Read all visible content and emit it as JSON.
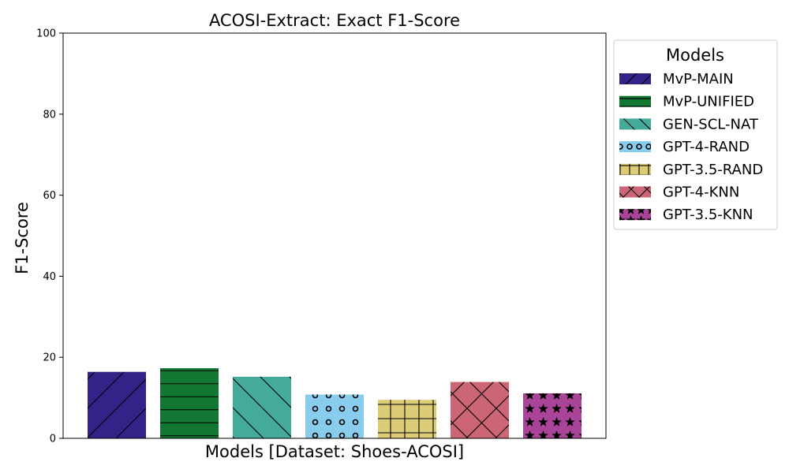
{
  "chart_data": {
    "type": "bar",
    "title": "ACOSI-Extract: Exact F1-Score",
    "xlabel": "Models [Dataset: Shoes-ACOSI]",
    "ylabel": "F1-Score",
    "ylim": [
      0,
      100
    ],
    "yticks": [
      0,
      20,
      40,
      60,
      80,
      100
    ],
    "grid": false,
    "legend": {
      "title": "Models",
      "placement": "outside-right-top"
    },
    "categories": [
      "MvP-MAIN",
      "MvP-UNIFIED",
      "GEN-SCL-NAT",
      "GPT-4-RAND",
      "GPT-3.5-RAND",
      "GPT-4-KNN",
      "GPT-3.5-KNN"
    ],
    "values": [
      16.4,
      17.3,
      15.2,
      10.8,
      9.5,
      13.9,
      11.1
    ],
    "colors": [
      "#332288",
      "#117733",
      "#44AA99",
      "#88CCEE",
      "#DDCC77",
      "#CC6677",
      "#AA4499"
    ],
    "hatches": [
      "diagonal-forward",
      "horizontal",
      "diagonal-back",
      "circles",
      "grid",
      "crosshatch",
      "stars"
    ]
  }
}
